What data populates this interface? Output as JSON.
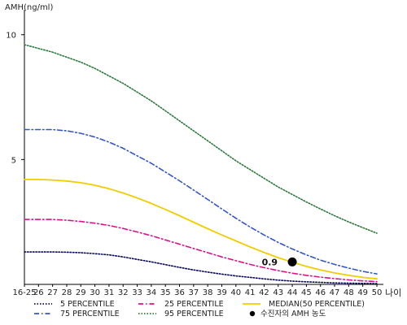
{
  "chart_data": {
    "type": "line",
    "ylabel": "AMH(ng/ml)",
    "xlabel": "나이",
    "x": [
      "16-25",
      "26",
      "27",
      "28",
      "29",
      "30",
      "31",
      "32",
      "33",
      "34",
      "35",
      "36",
      "37",
      "38",
      "39",
      "40",
      "41",
      "42",
      "43",
      "44",
      "45",
      "46",
      "47",
      "48",
      "49",
      "50"
    ],
    "ylim": [
      0,
      11
    ],
    "y_ticks": [
      5,
      10
    ],
    "y_tick_labels": [
      "5",
      "10"
    ],
    "grid": false,
    "legend_position": "bottom",
    "series": [
      {
        "name": "5 PERCENTILE",
        "color": "#0a0a5a",
        "dash": "dotted",
        "values": [
          1.3,
          1.3,
          1.3,
          1.29,
          1.27,
          1.23,
          1.18,
          1.1,
          1.0,
          0.9,
          0.79,
          0.68,
          0.58,
          0.49,
          0.41,
          0.34,
          0.28,
          0.22,
          0.17,
          0.13,
          0.1,
          0.08,
          0.06,
          0.05,
          0.04,
          0.03
        ]
      },
      {
        "name": "75 PERCENTILE",
        "color": "#3355cc",
        "dash": "dash-dot",
        "values": [
          6.2,
          6.2,
          6.2,
          6.15,
          6.05,
          5.9,
          5.7,
          5.45,
          5.15,
          4.85,
          4.5,
          4.15,
          3.78,
          3.4,
          3.02,
          2.65,
          2.3,
          1.98,
          1.68,
          1.42,
          1.18,
          0.97,
          0.8,
          0.65,
          0.52,
          0.42
        ]
      },
      {
        "name": "25 PERCENTILE",
        "color": "#dd1188",
        "dash": "dash-dot",
        "values": [
          2.6,
          2.6,
          2.6,
          2.57,
          2.52,
          2.45,
          2.36,
          2.24,
          2.1,
          1.95,
          1.78,
          1.61,
          1.44,
          1.27,
          1.1,
          0.95,
          0.8,
          0.67,
          0.55,
          0.45,
          0.36,
          0.29,
          0.23,
          0.18,
          0.14,
          0.11
        ]
      },
      {
        "name": "95 PERCENTILE",
        "color": "#2a7a3a",
        "dash": "dotted",
        "values": [
          9.6,
          9.45,
          9.3,
          9.1,
          8.9,
          8.65,
          8.35,
          8.05,
          7.7,
          7.35,
          6.95,
          6.55,
          6.15,
          5.75,
          5.35,
          4.95,
          4.6,
          4.25,
          3.9,
          3.6,
          3.3,
          3.02,
          2.75,
          2.5,
          2.27,
          2.05
        ]
      },
      {
        "name": "MEDIAN(50 PERCENTILE)",
        "color": "#f2cc00",
        "dash": "solid",
        "values": [
          4.2,
          4.2,
          4.18,
          4.14,
          4.07,
          3.97,
          3.83,
          3.66,
          3.46,
          3.24,
          3.0,
          2.75,
          2.49,
          2.23,
          1.98,
          1.74,
          1.5,
          1.28,
          1.07,
          0.89,
          0.72,
          0.58,
          0.46,
          0.36,
          0.28,
          0.22
        ]
      }
    ],
    "marker": {
      "name": "수진자의 AMH 농도",
      "x": "44",
      "y": 0.9,
      "label": "0.9",
      "color": "#000000"
    }
  }
}
